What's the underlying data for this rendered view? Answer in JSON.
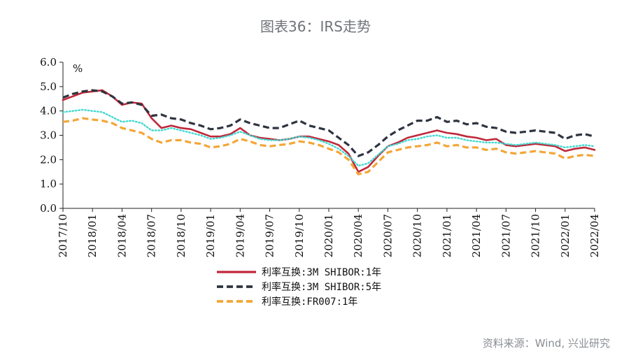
{
  "title": "图表36：IRS走势",
  "source": "资料来源：Wind, 兴业研究",
  "chart_data": {
    "type": "line",
    "title": "图表36：IRS走势",
    "ylabel": "%",
    "ylim": [
      0.0,
      6.0
    ],
    "yticks": [
      "0.0",
      "1.0",
      "2.0",
      "3.0",
      "4.0",
      "5.0",
      "6.0"
    ],
    "xticks": [
      "2017/10",
      "2018/01",
      "2018/04",
      "2018/07",
      "2018/10",
      "2019/01",
      "2019/04",
      "2019/07",
      "2019/10",
      "2020/01",
      "2020/04",
      "2020/07",
      "2020/10",
      "2021/01",
      "2021/04",
      "2021/07",
      "2021/10",
      "2022/01",
      "2022/04"
    ],
    "x": [
      "2017/10",
      "2017/11",
      "2017/12",
      "2018/01",
      "2018/02",
      "2018/03",
      "2018/04",
      "2018/05",
      "2018/06",
      "2018/07",
      "2018/08",
      "2018/09",
      "2018/10",
      "2018/11",
      "2018/12",
      "2019/01",
      "2019/02",
      "2019/03",
      "2019/04",
      "2019/05",
      "2019/06",
      "2019/07",
      "2019/08",
      "2019/09",
      "2019/10",
      "2019/11",
      "2019/12",
      "2020/01",
      "2020/02",
      "2020/03",
      "2020/04",
      "2020/05",
      "2020/06",
      "2020/07",
      "2020/08",
      "2020/09",
      "2020/10",
      "2020/11",
      "2020/12",
      "2021/01",
      "2021/02",
      "2021/03",
      "2021/04",
      "2021/05",
      "2021/06",
      "2021/07",
      "2021/08",
      "2021/09",
      "2021/10",
      "2021/11",
      "2021/12",
      "2022/01",
      "2022/02",
      "2022/03",
      "2022/04"
    ],
    "grid": false,
    "legend_position": "bottom",
    "series": [
      {
        "name": "利率互换:3M SHIBOR:1年",
        "color": "#c0283a",
        "style": "solid",
        "values": [
          4.45,
          4.6,
          4.75,
          4.8,
          4.85,
          4.6,
          4.25,
          4.35,
          4.3,
          3.7,
          3.3,
          3.4,
          3.3,
          3.25,
          3.1,
          2.95,
          2.95,
          3.05,
          3.3,
          3.0,
          2.9,
          2.85,
          2.8,
          2.85,
          2.95,
          2.95,
          2.85,
          2.75,
          2.6,
          2.25,
          1.5,
          1.7,
          2.15,
          2.55,
          2.7,
          2.9,
          3.0,
          3.1,
          3.2,
          3.1,
          3.05,
          2.95,
          2.9,
          2.8,
          2.85,
          2.6,
          2.55,
          2.6,
          2.65,
          2.6,
          2.55,
          2.35,
          2.45,
          2.5,
          2.4
        ]
      },
      {
        "name": "利率互换:3M SHIBOR:5年",
        "color": "#2e3440",
        "style": "dashed",
        "values": [
          4.55,
          4.7,
          4.8,
          4.85,
          4.8,
          4.6,
          4.3,
          4.35,
          4.25,
          3.8,
          3.85,
          3.7,
          3.65,
          3.5,
          3.4,
          3.25,
          3.3,
          3.4,
          3.65,
          3.5,
          3.4,
          3.3,
          3.3,
          3.45,
          3.6,
          3.4,
          3.3,
          3.2,
          2.9,
          2.6,
          2.15,
          2.3,
          2.6,
          2.95,
          3.2,
          3.4,
          3.6,
          3.6,
          3.75,
          3.55,
          3.6,
          3.45,
          3.5,
          3.35,
          3.3,
          3.15,
          3.1,
          3.15,
          3.2,
          3.15,
          3.1,
          2.85,
          3.0,
          3.05,
          2.95
        ]
      },
      {
        "name": "",
        "color": "#40d8d0",
        "style": "dotted",
        "values": [
          3.95,
          4.0,
          4.05,
          4.0,
          3.95,
          3.75,
          3.55,
          3.6,
          3.5,
          3.2,
          3.2,
          3.3,
          3.2,
          3.1,
          3.0,
          2.85,
          2.9,
          3.0,
          3.15,
          3.0,
          2.85,
          2.8,
          2.8,
          2.85,
          2.95,
          2.9,
          2.8,
          2.65,
          2.45,
          2.15,
          1.75,
          1.85,
          2.2,
          2.55,
          2.65,
          2.8,
          2.85,
          2.95,
          3.0,
          2.9,
          2.9,
          2.8,
          2.75,
          2.7,
          2.7,
          2.65,
          2.6,
          2.65,
          2.7,
          2.65,
          2.6,
          2.5,
          2.55,
          2.6,
          2.55
        ]
      },
      {
        "name": "利率互换:FR007:1年",
        "color": "#f3a636",
        "style": "dashed",
        "values": [
          3.55,
          3.6,
          3.7,
          3.65,
          3.6,
          3.5,
          3.3,
          3.2,
          3.1,
          2.85,
          2.7,
          2.8,
          2.8,
          2.7,
          2.65,
          2.5,
          2.55,
          2.65,
          2.85,
          2.75,
          2.6,
          2.55,
          2.6,
          2.65,
          2.75,
          2.7,
          2.6,
          2.45,
          2.3,
          2.0,
          1.4,
          1.5,
          1.9,
          2.3,
          2.4,
          2.5,
          2.55,
          2.6,
          2.7,
          2.55,
          2.6,
          2.5,
          2.5,
          2.4,
          2.45,
          2.3,
          2.25,
          2.3,
          2.35,
          2.3,
          2.25,
          2.05,
          2.15,
          2.2,
          2.15
        ]
      }
    ]
  }
}
